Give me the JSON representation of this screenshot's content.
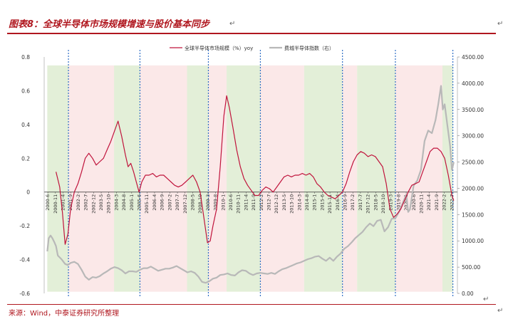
{
  "title": "图表8：全球半导体市场规模增速与股价基本同步",
  "source": "来源：Wind，中泰证券研究所整理",
  "colors": {
    "brand": "#b0171f",
    "growth_line": "#c0143c",
    "index_line": "#b8b8b8",
    "band_green": "#e3efd8",
    "band_pink": "#fbe8e8",
    "divider": "#2f6fc6"
  },
  "chart_data": {
    "type": "line",
    "legend": [
      "全球半导体市场规模（%）yoy",
      "费城半导体指数（右）"
    ],
    "legend_position": "top-center",
    "x_tick_labels": [
      "2000-6",
      "2000-11",
      "2001-4",
      "2001-9",
      "2002-2",
      "2002-7",
      "2002-12",
      "2003-5",
      "2003-10",
      "2004-3",
      "2004-8",
      "2005-1",
      "2005-6",
      "2005-11",
      "2006-4",
      "2006-9",
      "2007-2",
      "2007-7",
      "2007-12",
      "2008-5",
      "2008-10",
      "2009-3",
      "2009-8",
      "2010-1",
      "2010-6",
      "2010-11",
      "2011-4",
      "2011-9",
      "2012-2",
      "2012-7",
      "2012-12",
      "2013-5",
      "2013-10",
      "2014-3",
      "2014-8",
      "2015-1",
      "2015-6",
      "2015-11",
      "2016-4",
      "2016-9",
      "2017-2",
      "2017-7",
      "2017-12",
      "2018-5",
      "2018-10",
      "2019-3",
      "2019-8",
      "2020-1",
      "2020-6",
      "2020-11",
      "2021-4",
      "2021-9",
      "2022-2",
      "2022-7"
    ],
    "y_left": {
      "min": -0.6,
      "max": 0.8,
      "ticks": [
        "0.8",
        "0.6",
        "0.4",
        "0.2",
        "0",
        "-0.2",
        "-0.4",
        "-0.6"
      ]
    },
    "y_right": {
      "min": 0,
      "max": 4500,
      "ticks": [
        "4500.00",
        "4000.00",
        "3500.00",
        "3000.00",
        "2500.00",
        "2000.00",
        "1500.00",
        "1000.00",
        "500.00",
        "0.00"
      ]
    },
    "grid": false,
    "bands": [
      {
        "from": 2000.42,
        "to": 2001.58,
        "kind": "green"
      },
      {
        "from": 2001.58,
        "to": 2004.08,
        "kind": "pink"
      },
      {
        "from": 2004.08,
        "to": 2005.5,
        "kind": "green"
      },
      {
        "from": 2005.5,
        "to": 2008.08,
        "kind": "pink"
      },
      {
        "from": 2008.08,
        "to": 2009.25,
        "kind": "green"
      },
      {
        "from": 2009.25,
        "to": 2010.25,
        "kind": "pink"
      },
      {
        "from": 2010.25,
        "to": 2012.1,
        "kind": "green"
      },
      {
        "from": 2012.1,
        "to": 2014.5,
        "kind": "pink"
      },
      {
        "from": 2014.5,
        "to": 2016.6,
        "kind": "green"
      },
      {
        "from": 2016.6,
        "to": 2017.4,
        "kind": "pink"
      },
      {
        "from": 2017.4,
        "to": 2019.5,
        "kind": "green"
      },
      {
        "from": 2019.5,
        "to": 2022.08,
        "kind": "pink"
      },
      {
        "from": 2022.08,
        "to": 2022.65,
        "kind": "green"
      }
    ],
    "dividers": [
      2001.58,
      2005.5,
      2009.25,
      2012.1,
      2016.6,
      2019.5,
      2022.65
    ],
    "series": [
      {
        "name": "全球半导体市场规模（%）yoy",
        "axis": "left",
        "points": [
          [
            2000.9,
            0.12
          ],
          [
            2001.1,
            0.03
          ],
          [
            2001.25,
            -0.12
          ],
          [
            2001.4,
            -0.31
          ],
          [
            2001.55,
            -0.25
          ],
          [
            2001.7,
            -0.1
          ],
          [
            2001.9,
            0.0
          ],
          [
            2002.1,
            0.05
          ],
          [
            2002.3,
            0.12
          ],
          [
            2002.5,
            0.2
          ],
          [
            2002.7,
            0.23
          ],
          [
            2002.9,
            0.2
          ],
          [
            2003.1,
            0.16
          ],
          [
            2003.3,
            0.18
          ],
          [
            2003.5,
            0.2
          ],
          [
            2003.7,
            0.25
          ],
          [
            2003.9,
            0.3
          ],
          [
            2004.1,
            0.36
          ],
          [
            2004.3,
            0.42
          ],
          [
            2004.5,
            0.33
          ],
          [
            2004.7,
            0.22
          ],
          [
            2004.85,
            0.15
          ],
          [
            2005.0,
            0.17
          ],
          [
            2005.15,
            0.12
          ],
          [
            2005.3,
            0.06
          ],
          [
            2005.45,
            0.0
          ],
          [
            2005.6,
            0.06
          ],
          [
            2005.8,
            0.1
          ],
          [
            2006.0,
            0.1
          ],
          [
            2006.2,
            0.11
          ],
          [
            2006.4,
            0.09
          ],
          [
            2006.6,
            0.1
          ],
          [
            2006.8,
            0.1
          ],
          [
            2007.0,
            0.08
          ],
          [
            2007.2,
            0.06
          ],
          [
            2007.4,
            0.04
          ],
          [
            2007.6,
            0.03
          ],
          [
            2007.8,
            0.04
          ],
          [
            2008.0,
            0.06
          ],
          [
            2008.2,
            0.08
          ],
          [
            2008.4,
            0.1
          ],
          [
            2008.6,
            0.06
          ],
          [
            2008.8,
            0.0
          ],
          [
            2009.0,
            -0.15
          ],
          [
            2009.2,
            -0.3
          ],
          [
            2009.35,
            -0.29
          ],
          [
            2009.5,
            -0.2
          ],
          [
            2009.7,
            -0.1
          ],
          [
            2009.9,
            0.15
          ],
          [
            2010.1,
            0.45
          ],
          [
            2010.25,
            0.57
          ],
          [
            2010.4,
            0.5
          ],
          [
            2010.6,
            0.38
          ],
          [
            2010.8,
            0.25
          ],
          [
            2011.0,
            0.15
          ],
          [
            2011.2,
            0.08
          ],
          [
            2011.4,
            0.04
          ],
          [
            2011.6,
            0.01
          ],
          [
            2011.8,
            -0.02
          ],
          [
            2012.0,
            -0.02
          ],
          [
            2012.2,
            0.01
          ],
          [
            2012.4,
            0.03
          ],
          [
            2012.6,
            0.02
          ],
          [
            2012.8,
            0.0
          ],
          [
            2013.0,
            0.03
          ],
          [
            2013.2,
            0.06
          ],
          [
            2013.4,
            0.09
          ],
          [
            2013.6,
            0.1
          ],
          [
            2013.8,
            0.09
          ],
          [
            2014.0,
            0.1
          ],
          [
            2014.2,
            0.1
          ],
          [
            2014.4,
            0.11
          ],
          [
            2014.6,
            0.1
          ],
          [
            2014.8,
            0.11
          ],
          [
            2015.0,
            0.09
          ],
          [
            2015.2,
            0.05
          ],
          [
            2015.4,
            0.03
          ],
          [
            2015.6,
            0.0
          ],
          [
            2015.8,
            -0.02
          ],
          [
            2016.0,
            -0.03
          ],
          [
            2016.2,
            -0.04
          ],
          [
            2016.4,
            -0.02
          ],
          [
            2016.6,
            0.0
          ],
          [
            2016.8,
            0.05
          ],
          [
            2017.0,
            0.12
          ],
          [
            2017.2,
            0.18
          ],
          [
            2017.4,
            0.22
          ],
          [
            2017.6,
            0.24
          ],
          [
            2017.8,
            0.23
          ],
          [
            2018.0,
            0.21
          ],
          [
            2018.2,
            0.22
          ],
          [
            2018.4,
            0.21
          ],
          [
            2018.6,
            0.18
          ],
          [
            2018.8,
            0.15
          ],
          [
            2019.0,
            0.05
          ],
          [
            2019.2,
            -0.1
          ],
          [
            2019.4,
            -0.15
          ],
          [
            2019.6,
            -0.13
          ],
          [
            2019.8,
            -0.1
          ],
          [
            2020.0,
            -0.05
          ],
          [
            2020.2,
            0.0
          ],
          [
            2020.4,
            0.04
          ],
          [
            2020.6,
            0.05
          ],
          [
            2020.8,
            0.06
          ],
          [
            2021.0,
            0.12
          ],
          [
            2021.2,
            0.18
          ],
          [
            2021.4,
            0.24
          ],
          [
            2021.6,
            0.26
          ],
          [
            2021.8,
            0.26
          ],
          [
            2022.0,
            0.24
          ],
          [
            2022.2,
            0.2
          ],
          [
            2022.4,
            0.1
          ],
          [
            2022.6,
            -0.02
          ],
          [
            2022.7,
            -0.05
          ]
        ]
      },
      {
        "name": "费城半导体指数（右）",
        "axis": "right",
        "points": [
          [
            2000.42,
            800
          ],
          [
            2000.5,
            1050
          ],
          [
            2000.6,
            1100
          ],
          [
            2000.7,
            1050
          ],
          [
            2000.8,
            980
          ],
          [
            2000.9,
            900
          ],
          [
            2001.0,
            720
          ],
          [
            2001.2,
            650
          ],
          [
            2001.4,
            560
          ],
          [
            2001.55,
            540
          ],
          [
            2001.7,
            580
          ],
          [
            2001.9,
            600
          ],
          [
            2002.1,
            560
          ],
          [
            2002.3,
            450
          ],
          [
            2002.5,
            320
          ],
          [
            2002.7,
            260
          ],
          [
            2002.9,
            310
          ],
          [
            2003.1,
            300
          ],
          [
            2003.3,
            330
          ],
          [
            2003.5,
            380
          ],
          [
            2003.7,
            420
          ],
          [
            2003.9,
            470
          ],
          [
            2004.1,
            500
          ],
          [
            2004.3,
            480
          ],
          [
            2004.5,
            440
          ],
          [
            2004.7,
            380
          ],
          [
            2004.9,
            420
          ],
          [
            2005.1,
            420
          ],
          [
            2005.3,
            410
          ],
          [
            2005.5,
            450
          ],
          [
            2005.7,
            480
          ],
          [
            2005.9,
            480
          ],
          [
            2006.1,
            510
          ],
          [
            2006.3,
            470
          ],
          [
            2006.5,
            430
          ],
          [
            2006.7,
            450
          ],
          [
            2006.9,
            470
          ],
          [
            2007.1,
            470
          ],
          [
            2007.3,
            490
          ],
          [
            2007.5,
            520
          ],
          [
            2007.7,
            480
          ],
          [
            2007.9,
            440
          ],
          [
            2008.1,
            400
          ],
          [
            2008.3,
            420
          ],
          [
            2008.5,
            390
          ],
          [
            2008.7,
            320
          ],
          [
            2008.9,
            220
          ],
          [
            2009.1,
            200
          ],
          [
            2009.3,
            230
          ],
          [
            2009.5,
            280
          ],
          [
            2009.7,
            300
          ],
          [
            2009.9,
            350
          ],
          [
            2010.1,
            360
          ],
          [
            2010.3,
            380
          ],
          [
            2010.5,
            350
          ],
          [
            2010.7,
            340
          ],
          [
            2010.9,
            400
          ],
          [
            2011.1,
            440
          ],
          [
            2011.3,
            430
          ],
          [
            2011.5,
            380
          ],
          [
            2011.7,
            350
          ],
          [
            2011.9,
            380
          ],
          [
            2012.1,
            390
          ],
          [
            2012.3,
            380
          ],
          [
            2012.5,
            370
          ],
          [
            2012.7,
            390
          ],
          [
            2012.9,
            370
          ],
          [
            2013.1,
            420
          ],
          [
            2013.3,
            460
          ],
          [
            2013.5,
            480
          ],
          [
            2013.7,
            510
          ],
          [
            2013.9,
            540
          ],
          [
            2014.1,
            570
          ],
          [
            2014.3,
            590
          ],
          [
            2014.5,
            620
          ],
          [
            2014.7,
            650
          ],
          [
            2014.9,
            670
          ],
          [
            2015.1,
            700
          ],
          [
            2015.3,
            710
          ],
          [
            2015.5,
            660
          ],
          [
            2015.7,
            620
          ],
          [
            2015.9,
            680
          ],
          [
            2016.1,
            620
          ],
          [
            2016.3,
            700
          ],
          [
            2016.5,
            760
          ],
          [
            2016.7,
            850
          ],
          [
            2016.9,
            900
          ],
          [
            2017.1,
            970
          ],
          [
            2017.3,
            1050
          ],
          [
            2017.5,
            1110
          ],
          [
            2017.7,
            1170
          ],
          [
            2017.9,
            1260
          ],
          [
            2018.1,
            1330
          ],
          [
            2018.3,
            1280
          ],
          [
            2018.5,
            1380
          ],
          [
            2018.7,
            1400
          ],
          [
            2018.9,
            1180
          ],
          [
            2019.1,
            1260
          ],
          [
            2019.3,
            1420
          ],
          [
            2019.5,
            1430
          ],
          [
            2019.7,
            1550
          ],
          [
            2019.9,
            1720
          ],
          [
            2020.1,
            1880
          ],
          [
            2020.2,
            1550
          ],
          [
            2020.3,
            1600
          ],
          [
            2020.5,
            2050
          ],
          [
            2020.7,
            2150
          ],
          [
            2020.9,
            2350
          ],
          [
            2021.1,
            2900
          ],
          [
            2021.3,
            3100
          ],
          [
            2021.5,
            3050
          ],
          [
            2021.7,
            3300
          ],
          [
            2021.85,
            3600
          ],
          [
            2022.0,
            3950
          ],
          [
            2022.1,
            3500
          ],
          [
            2022.2,
            3600
          ],
          [
            2022.35,
            3200
          ],
          [
            2022.5,
            2800
          ],
          [
            2022.6,
            2350
          ],
          [
            2022.7,
            2500
          ]
        ]
      }
    ]
  }
}
